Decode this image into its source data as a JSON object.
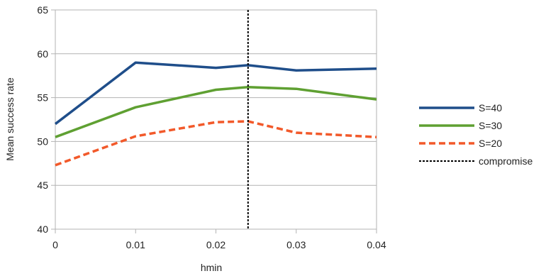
{
  "chart_data": {
    "type": "line",
    "title": "",
    "xlabel": "hmin",
    "ylabel": "Mean success rate",
    "xlim": [
      0,
      0.04
    ],
    "ylim": [
      40,
      65
    ],
    "xticks": [
      "0",
      "0.01",
      "0.02",
      "0.03",
      "0.04"
    ],
    "yticks": [
      "40",
      "45",
      "50",
      "55",
      "60",
      "65"
    ],
    "grid": "horizontal",
    "legend_position": "right",
    "x": [
      0,
      0.01,
      0.02,
      0.024,
      0.03,
      0.04
    ],
    "series": [
      {
        "name": "S=40",
        "color": "#1f4e8a",
        "style": "solid",
        "values": [
          52.0,
          59.0,
          58.4,
          58.7,
          58.1,
          58.3
        ]
      },
      {
        "name": "S=30",
        "color": "#5fa032",
        "style": "solid",
        "values": [
          50.5,
          53.9,
          55.9,
          56.2,
          56.0,
          54.8
        ]
      },
      {
        "name": "S=20",
        "color": "#f2592a",
        "style": "dashed",
        "values": [
          47.3,
          50.6,
          52.2,
          52.3,
          51.0,
          50.5
        ]
      }
    ],
    "reference_line": {
      "name": "compromise",
      "x": 0.024,
      "color": "#000000",
      "style": "dotted"
    }
  }
}
